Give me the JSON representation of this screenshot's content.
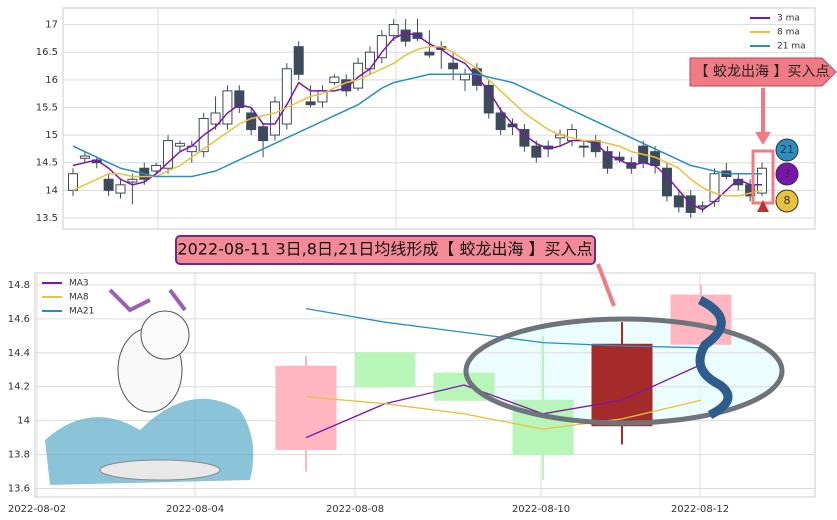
{
  "chart_data": [
    {
      "type": "candlestick",
      "ylim": [
        13.3,
        17.3
      ],
      "yticks": [
        13.5,
        14.0,
        14.5,
        15.0,
        15.5,
        16.0,
        16.5,
        17.0
      ],
      "up_color": "#ffffff",
      "down_color": "#3d4a5c",
      "grid": true,
      "legend": "upper right",
      "ohlc": [
        [
          14.0,
          14.4,
          13.9,
          14.3
        ],
        [
          14.58,
          14.7,
          14.5,
          14.62
        ],
        [
          14.55,
          14.6,
          14.4,
          14.5
        ],
        [
          14.2,
          14.3,
          13.9,
          14.0
        ],
        [
          13.95,
          14.2,
          13.85,
          14.1
        ],
        [
          14.15,
          14.3,
          13.75,
          14.2
        ],
        [
          14.4,
          14.5,
          14.1,
          14.2
        ],
        [
          14.35,
          14.5,
          14.3,
          14.45
        ],
        [
          14.4,
          15.0,
          14.3,
          14.9
        ],
        [
          14.8,
          14.9,
          14.7,
          14.85
        ],
        [
          14.7,
          14.9,
          14.5,
          14.8
        ],
        [
          14.7,
          15.4,
          14.6,
          15.3
        ],
        [
          15.2,
          15.7,
          15.1,
          15.4
        ],
        [
          15.2,
          15.9,
          15.1,
          15.8
        ],
        [
          15.8,
          15.9,
          15.4,
          15.5
        ],
        [
          15.4,
          15.5,
          15.0,
          15.1
        ],
        [
          15.15,
          15.2,
          14.6,
          14.9
        ],
        [
          15.0,
          15.7,
          14.9,
          15.6
        ],
        [
          15.2,
          16.3,
          15.1,
          16.2
        ],
        [
          16.6,
          16.7,
          16.0,
          16.1
        ],
        [
          15.6,
          15.9,
          15.5,
          15.55
        ],
        [
          15.6,
          15.9,
          15.5,
          15.8
        ],
        [
          15.95,
          16.1,
          15.9,
          16.05
        ],
        [
          16.0,
          16.1,
          15.7,
          15.8
        ],
        [
          15.85,
          16.4,
          15.8,
          16.3
        ],
        [
          16.2,
          16.6,
          16.1,
          16.5
        ],
        [
          16.4,
          16.9,
          16.3,
          16.8
        ],
        [
          16.8,
          17.1,
          16.7,
          17.0
        ],
        [
          16.9,
          17.1,
          16.6,
          16.7
        ],
        [
          16.85,
          17.1,
          16.7,
          16.75
        ],
        [
          16.5,
          16.9,
          16.4,
          16.45
        ],
        [
          16.6,
          16.7,
          16.2,
          16.55
        ],
        [
          16.3,
          16.5,
          16.0,
          16.2
        ],
        [
          16.0,
          16.2,
          15.8,
          16.1
        ],
        [
          16.2,
          16.3,
          15.8,
          15.9
        ],
        [
          15.9,
          16.0,
          15.3,
          15.4
        ],
        [
          15.4,
          15.5,
          15.0,
          15.1
        ],
        [
          15.2,
          15.3,
          15.0,
          15.15
        ],
        [
          15.1,
          15.2,
          14.7,
          14.8
        ],
        [
          14.8,
          14.9,
          14.5,
          14.6
        ],
        [
          14.8,
          14.9,
          14.6,
          14.75
        ],
        [
          14.95,
          15.1,
          14.8,
          15.0
        ],
        [
          14.9,
          15.2,
          14.8,
          15.1
        ],
        [
          14.8,
          14.9,
          14.6,
          14.78
        ],
        [
          14.9,
          15.0,
          14.6,
          14.7
        ],
        [
          14.7,
          14.8,
          14.3,
          14.4
        ],
        [
          14.6,
          14.7,
          14.5,
          14.55
        ],
        [
          14.5,
          14.6,
          14.3,
          14.4
        ],
        [
          14.8,
          14.9,
          14.4,
          14.5
        ],
        [
          14.7,
          14.8,
          14.3,
          14.45
        ],
        [
          14.4,
          14.5,
          13.8,
          13.9
        ],
        [
          13.9,
          14.0,
          13.6,
          13.7
        ],
        [
          13.9,
          14.0,
          13.5,
          13.6
        ],
        [
          13.7,
          13.8,
          13.6,
          13.72
        ],
        [
          13.8,
          14.4,
          13.7,
          14.3
        ],
        [
          14.35,
          14.5,
          14.2,
          14.25
        ],
        [
          14.2,
          14.3,
          14.0,
          14.1
        ],
        [
          14.1,
          14.2,
          13.8,
          13.9
        ],
        [
          13.95,
          14.5,
          13.9,
          14.4
        ]
      ],
      "series": [
        {
          "name": "3 ma",
          "color": "#7a16b0",
          "values": [
            14.45,
            14.5,
            14.55,
            14.4,
            14.2,
            14.1,
            14.15,
            14.3,
            14.5,
            14.7,
            14.8,
            15.0,
            15.15,
            15.4,
            15.55,
            15.5,
            15.2,
            15.2,
            15.55,
            15.95,
            15.8,
            15.8,
            15.8,
            15.85,
            16.05,
            16.2,
            16.5,
            16.75,
            16.85,
            16.8,
            16.65,
            16.55,
            16.4,
            16.3,
            16.05,
            15.8,
            15.45,
            15.2,
            15.0,
            14.85,
            14.75,
            14.8,
            14.9,
            14.9,
            14.85,
            14.65,
            14.55,
            14.45,
            14.5,
            14.45,
            14.25,
            14.0,
            13.75,
            13.65,
            13.8,
            14.0,
            14.2,
            14.1,
            14.1
          ]
        },
        {
          "name": "8 ma",
          "color": "#e8c23c",
          "values": [
            14.0,
            14.1,
            14.2,
            14.3,
            14.3,
            14.25,
            14.25,
            14.25,
            14.35,
            14.45,
            14.6,
            14.75,
            14.9,
            15.05,
            15.2,
            15.3,
            15.35,
            15.4,
            15.5,
            15.6,
            15.7,
            15.75,
            15.85,
            15.95,
            16.0,
            16.1,
            16.2,
            16.3,
            16.45,
            16.55,
            16.6,
            16.6,
            16.5,
            16.35,
            16.2,
            16.0,
            15.8,
            15.6,
            15.4,
            15.25,
            15.1,
            15.0,
            14.95,
            14.9,
            14.9,
            14.85,
            14.8,
            14.7,
            14.65,
            14.6,
            14.5,
            14.4,
            14.2,
            14.05,
            13.95,
            13.9,
            13.9,
            13.95,
            14.0
          ]
        },
        {
          "name": "21 ma",
          "color": "#2a8ec4",
          "values": [
            14.8,
            14.7,
            14.6,
            14.5,
            14.4,
            14.35,
            14.3,
            14.25,
            14.25,
            14.25,
            14.25,
            14.3,
            14.35,
            14.45,
            14.55,
            14.65,
            14.75,
            14.85,
            14.95,
            15.05,
            15.15,
            15.25,
            15.35,
            15.45,
            15.55,
            15.7,
            15.85,
            15.95,
            16.0,
            16.05,
            16.1,
            16.1,
            16.1,
            16.1,
            16.1,
            16.05,
            16.0,
            15.95,
            15.85,
            15.75,
            15.65,
            15.55,
            15.45,
            15.35,
            15.25,
            15.15,
            15.05,
            14.95,
            14.85,
            14.75,
            14.65,
            14.55,
            14.45,
            14.4,
            14.35,
            14.3,
            14.3,
            14.3,
            14.3
          ]
        }
      ],
      "annotation": "【 蛟龙出海 】买入点",
      "badges": [
        "21",
        "3",
        "8"
      ]
    },
    {
      "type": "candlestick",
      "title": "2022-08-11 3日,8日,21日均线形成【 蛟龙出海 】买入点",
      "ylim": [
        13.55,
        14.87
      ],
      "yticks": [
        13.6,
        13.8,
        14.0,
        14.2,
        14.4,
        14.6,
        14.8
      ],
      "xtick_labels": [
        "2022-08-02",
        "2022-08-04",
        "2022-08-08",
        "2022-08-10",
        "2022-08-12"
      ],
      "grid": true,
      "legend": "upper left",
      "ohlc": [
        [
          13.83,
          14.38,
          13.7,
          14.32
        ],
        [
          14.4,
          14.4,
          14.2,
          14.2
        ],
        [
          14.28,
          14.3,
          14.12,
          14.12
        ],
        [
          14.12,
          14.5,
          13.65,
          13.8
        ],
        [
          13.97,
          14.58,
          13.86,
          14.45
        ],
        [
          14.45,
          14.8,
          14.45,
          14.74
        ]
      ],
      "candle_colors": [
        "#ffb6c1",
        "#b8f5b8",
        "#b8f5b8",
        "#b8f5b8",
        "#a52a2a",
        "#ffb6c1"
      ],
      "series": [
        {
          "name": "MA3",
          "color": "#7a16b0",
          "values": [
            13.9,
            14.1,
            14.21,
            14.04,
            14.12,
            14.33
          ]
        },
        {
          "name": "MA8",
          "color": "#e8c23c",
          "values": [
            14.14,
            14.1,
            14.04,
            13.95,
            14.01,
            14.12
          ]
        },
        {
          "name": "MA21",
          "color": "#2a8ec4",
          "values": [
            14.66,
            14.58,
            14.52,
            14.46,
            14.44,
            14.43
          ]
        }
      ]
    }
  ]
}
